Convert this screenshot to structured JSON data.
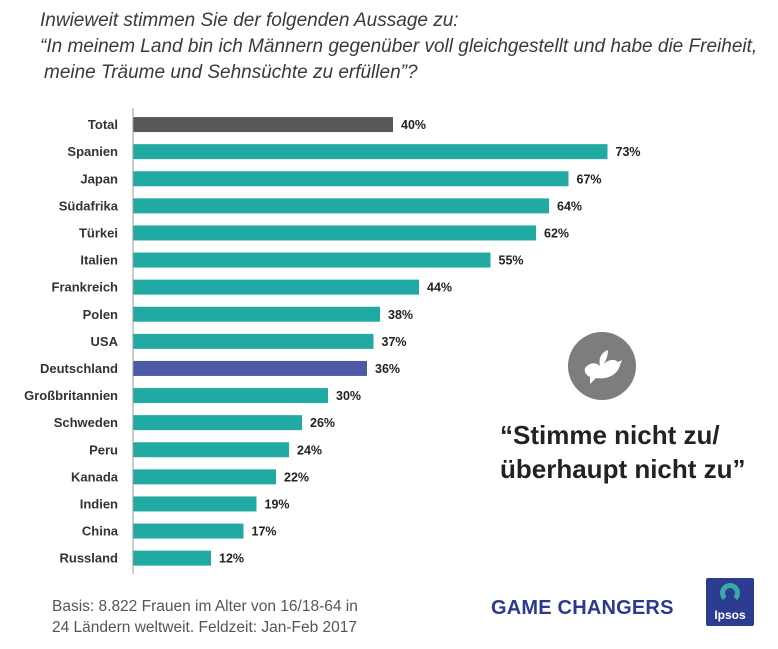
{
  "question": {
    "line1": "Inwieweit stimmen Sie der folgenden Aussage zu:",
    "line2": "“In meinem Land bin ich Männern gegenüber voll gleichgestellt und habe die Freiheit,",
    "line3": "meine Träume und Sehnsüchte zu erfüllen”?"
  },
  "annotation": {
    "line1": "“Stimme nicht zu/",
    "line2": "überhaupt nicht zu”",
    "icon": "dove-icon"
  },
  "footnote": {
    "line1": "Basis: 8.822 Frauen im Alter von 16/18-64 in",
    "line2": "24 Ländern weltweit. Feldzeit: Jan-Feb 2017"
  },
  "brand": "GAME CHANGERS",
  "logo_text": "Ipsos",
  "colors": {
    "default_bar": "#20aaa3",
    "total_bar": "#58585a",
    "highlight_bar": "#4d5aa6"
  },
  "chart_data": {
    "type": "bar",
    "orientation": "horizontal",
    "unit": "%",
    "xlim": [
      0,
      100
    ],
    "categories": [
      "Total",
      "Spanien",
      "Japan",
      "Südafrika",
      "Türkei",
      "Italien",
      "Frankreich",
      "Polen",
      "USA",
      "Deutschland",
      "Großbritannien",
      "Schweden",
      "Peru",
      "Kanada",
      "Indien",
      "China",
      "Russland"
    ],
    "values": [
      40,
      73,
      67,
      64,
      62,
      55,
      44,
      38,
      37,
      36,
      30,
      26,
      24,
      22,
      19,
      17,
      12
    ],
    "labels": [
      "40%",
      "73%",
      "67%",
      "64%",
      "62%",
      "55%",
      "44%",
      "38%",
      "37%",
      "36%",
      "30%",
      "26%",
      "24%",
      "22%",
      "19%",
      "17%",
      "12%"
    ],
    "bar_colors": [
      "total",
      "default",
      "default",
      "default",
      "default",
      "default",
      "default",
      "default",
      "default",
      "highlight",
      "default",
      "default",
      "default",
      "default",
      "default",
      "default",
      "default"
    ]
  }
}
